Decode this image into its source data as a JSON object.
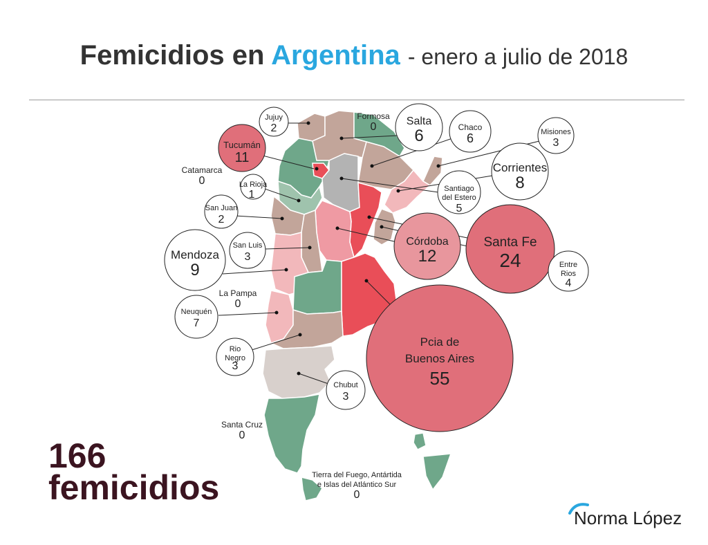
{
  "title": {
    "part1": "Femicidios en",
    "highlight": "Argentina",
    "part2": "- enero a julio de 2018"
  },
  "total": {
    "number": "166",
    "label": "femicidios"
  },
  "logo": {
    "text": "Norma López"
  },
  "colors": {
    "accent": "#2aa7df",
    "total_text": "#3b1420",
    "green": "#6fa78a",
    "mauve": "#c2a59a",
    "light_gray": "#d8d0cc",
    "gray": "#b3b3b3",
    "pink": "#ef9aa3",
    "light_pink": "#f2b8bb",
    "red": "#e94e58",
    "bubble_large": "#e06f7a",
    "bubble_medium": "#e8969d"
  },
  "provinces": [
    {
      "name": "Jujuy",
      "count": 2
    },
    {
      "name": "Formosa",
      "count": 0
    },
    {
      "name": "Salta",
      "count": 6
    },
    {
      "name": "Chaco",
      "count": 6
    },
    {
      "name": "Misiones",
      "count": 3
    },
    {
      "name": "Tucumán",
      "count": 11
    },
    {
      "name": "Corrientes",
      "count": 8
    },
    {
      "name": "Catamarca",
      "count": 0
    },
    {
      "name": "La Rioja",
      "count": 1
    },
    {
      "name": "Santiago del Estero",
      "count": 5
    },
    {
      "name": "San Juan",
      "count": 2
    },
    {
      "name": "Córdoba",
      "count": 12
    },
    {
      "name": "Santa Fe",
      "count": 24
    },
    {
      "name": "Mendoza",
      "count": 9
    },
    {
      "name": "San Luis",
      "count": 3
    },
    {
      "name": "Entre Rios",
      "count": 4
    },
    {
      "name": "La Pampa",
      "count": 0
    },
    {
      "name": "Neuquén",
      "count": 7
    },
    {
      "name": "Rio Negro",
      "count": 3
    },
    {
      "name": "Pcia de Buenos Aires",
      "count": 55
    },
    {
      "name": "Chubut",
      "count": 3
    },
    {
      "name": "Santa Cruz",
      "count": 0
    },
    {
      "name": "Tierra del Fuego, Antártida e Islas del Atlántico Sur",
      "count": 0
    }
  ]
}
